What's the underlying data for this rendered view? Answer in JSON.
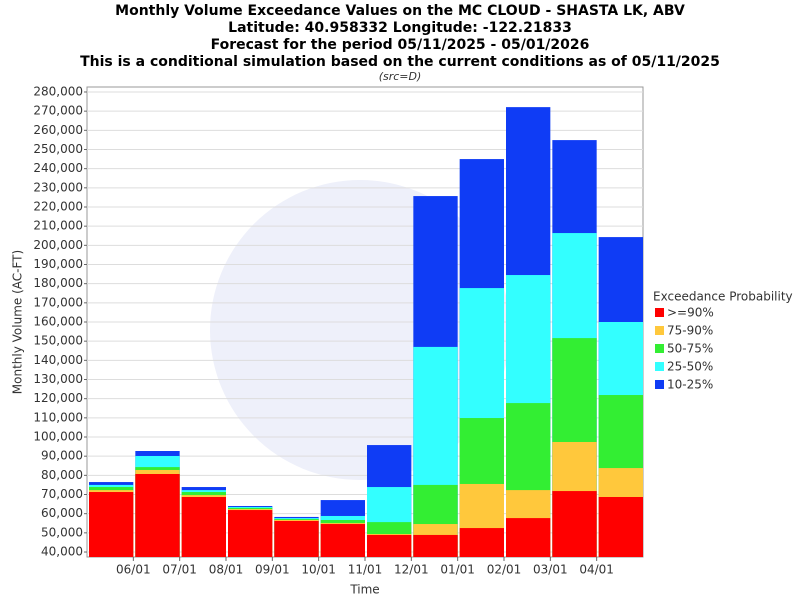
{
  "chart_data": {
    "type": "exceedance_bar",
    "title": [
      "Monthly Volume Exceedance Values on the MC CLOUD - SHASTA LK, ABV",
      "Latitude: 40.958332 Longitude: -122.21833",
      "Forecast for the period 05/11/2025 - 05/01/2026",
      "This is a conditional simulation based on the current conditions as of 05/11/2025"
    ],
    "subtitle": "(src=D)",
    "x_label": "Time",
    "y_label": "Monthly Volume (AC-FT)",
    "legend_title": "Exceedance Probability",
    "legend": "right",
    "categories": [
      null,
      null,
      null,
      null,
      null,
      null,
      null,
      null,
      null,
      null,
      null,
      null
    ],
    "xticks": [
      "06/01",
      "07/01",
      "08/01",
      "09/01",
      "10/01",
      "11/01",
      "12/01",
      "01/01",
      "02/01",
      "03/01",
      "04/01"
    ],
    "ylim": [
      37400,
      282600
    ],
    "yticks": [
      {
        "value": 40000,
        "label": "40,000"
      },
      {
        "value": 50000,
        "label": "50,000"
      },
      {
        "value": 60000,
        "label": "60,000"
      },
      {
        "value": 70000,
        "label": "70,000"
      },
      {
        "value": 80000,
        "label": "80,000"
      },
      {
        "value": 90000,
        "label": "90,000"
      },
      {
        "value": 100000,
        "label": "100,000"
      },
      {
        "value": 110000,
        "label": "110,000"
      },
      {
        "value": 120000,
        "label": "120,000"
      },
      {
        "value": 130000,
        "label": "130,000"
      },
      {
        "value": 140000,
        "label": "140,000"
      },
      {
        "value": 150000,
        "label": "150,000"
      },
      {
        "value": 160000,
        "label": "160,000"
      },
      {
        "value": 170000,
        "label": "170,000"
      },
      {
        "value": 180000,
        "label": "180,000"
      },
      {
        "value": 190000,
        "label": "190,000"
      },
      {
        "value": 200000,
        "label": "200,000"
      },
      {
        "value": 210000,
        "label": "210,000"
      },
      {
        "value": 220000,
        "label": "220,000"
      },
      {
        "value": 230000,
        "label": "230,000"
      },
      {
        "value": 240000,
        "label": "240,000"
      },
      {
        "value": 250000,
        "label": "250,000"
      },
      {
        "value": 260000,
        "label": "260,000"
      },
      {
        "value": 270000,
        "label": "270,000"
      },
      {
        "value": 280000,
        "label": "280,000"
      }
    ],
    "grid": true,
    "series": [
      {
        "name": ">=90%",
        "color": "#ff0000",
        "values": [
          71300,
          80700,
          68700,
          61900,
          56200,
          54600,
          48900,
          48900,
          52500,
          57700,
          71800,
          68700
        ]
      },
      {
        "name": "75-90%",
        "color": "#ffc83c",
        "values": [
          72300,
          82800,
          69700,
          62400,
          56700,
          55100,
          49400,
          54600,
          75500,
          72300,
          97400,
          83800
        ]
      },
      {
        "name": "50-75%",
        "color": "#33ee33",
        "values": [
          73900,
          84300,
          71300,
          63000,
          57200,
          56700,
          55600,
          75000,
          109900,
          117700,
          151600,
          121900
        ]
      },
      {
        "name": "25-50%",
        "color": "#33ffff",
        "values": [
          75000,
          90100,
          72300,
          63500,
          57700,
          58800,
          73900,
          147000,
          177700,
          184500,
          206400,
          160000
        ]
      },
      {
        "name": "10-25%",
        "color": "#0f3cf5",
        "values": [
          76500,
          92700,
          73900,
          64000,
          58300,
          67100,
          95800,
          225700,
          245000,
          272100,
          254900,
          204300
        ]
      }
    ]
  }
}
